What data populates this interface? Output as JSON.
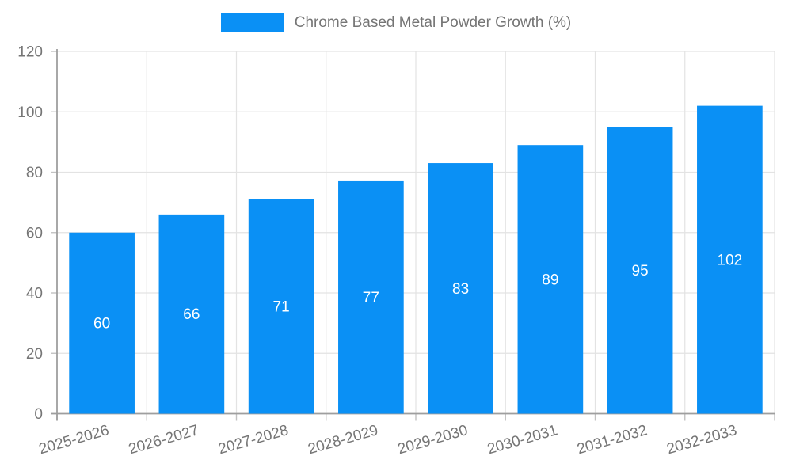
{
  "legend": {
    "position": "top"
  },
  "chart_data": {
    "type": "bar",
    "title": "",
    "categories": [
      "2025-2026",
      "2026-2027",
      "2027-2028",
      "2028-2029",
      "2029-2030",
      "2030-2031",
      "2031-2032",
      "2032-2033"
    ],
    "series": [
      {
        "name": "Chrome Based Metal Powder Growth (%)",
        "values": [
          60,
          66,
          71,
          77,
          83,
          89,
          95,
          102
        ]
      }
    ],
    "ylim": [
      0,
      120
    ],
    "yticks": [
      0,
      20,
      40,
      60,
      80,
      100,
      120
    ],
    "xlabel": "",
    "ylabel": "",
    "grid": true,
    "legend_position": "top",
    "x_label_rotation_deg": -16,
    "value_labels": "inside-center",
    "colors": {
      "bar": "#0a90f5",
      "value_label": "#ffffff",
      "axis": "#9e9e9e",
      "tick": "#c2c2c2",
      "grid": "#e3e3e3",
      "tick_label": "#757575",
      "legend_text": "#757575",
      "background": "#ffffff"
    }
  }
}
